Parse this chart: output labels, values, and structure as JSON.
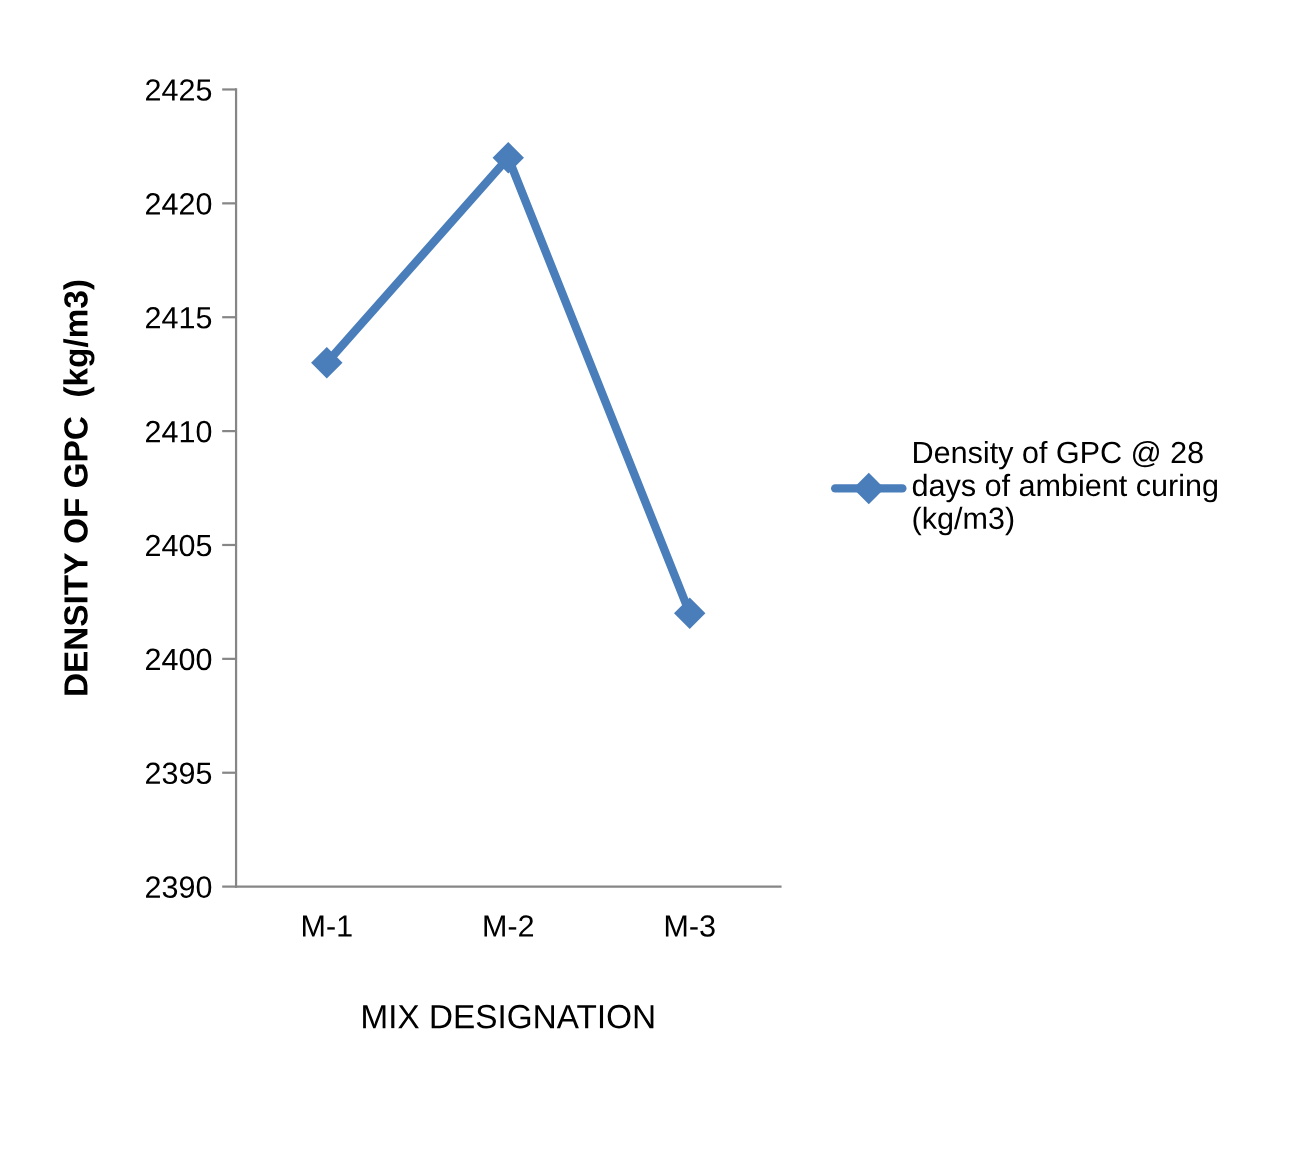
{
  "chart_data": {
    "type": "line",
    "xlabel": "MIX DESIGNATION",
    "ylabel": "DENSITY OF GPC  (kg/m3)",
    "categories": [
      "M-1",
      "M-2",
      "M-3"
    ],
    "series": [
      {
        "name": "Density of GPC @ 28\ndays of ambient curing\n(kg/m3)",
        "color": "#4a7ebb",
        "values": [
          2413,
          2422,
          2402
        ]
      }
    ],
    "ylim": [
      2390,
      2425
    ],
    "yticks": [
      2390,
      2395,
      2400,
      2405,
      2410,
      2415,
      2420,
      2425
    ],
    "grid": false,
    "legend": "right",
    "marker": "diamond",
    "line_style": "solid"
  }
}
